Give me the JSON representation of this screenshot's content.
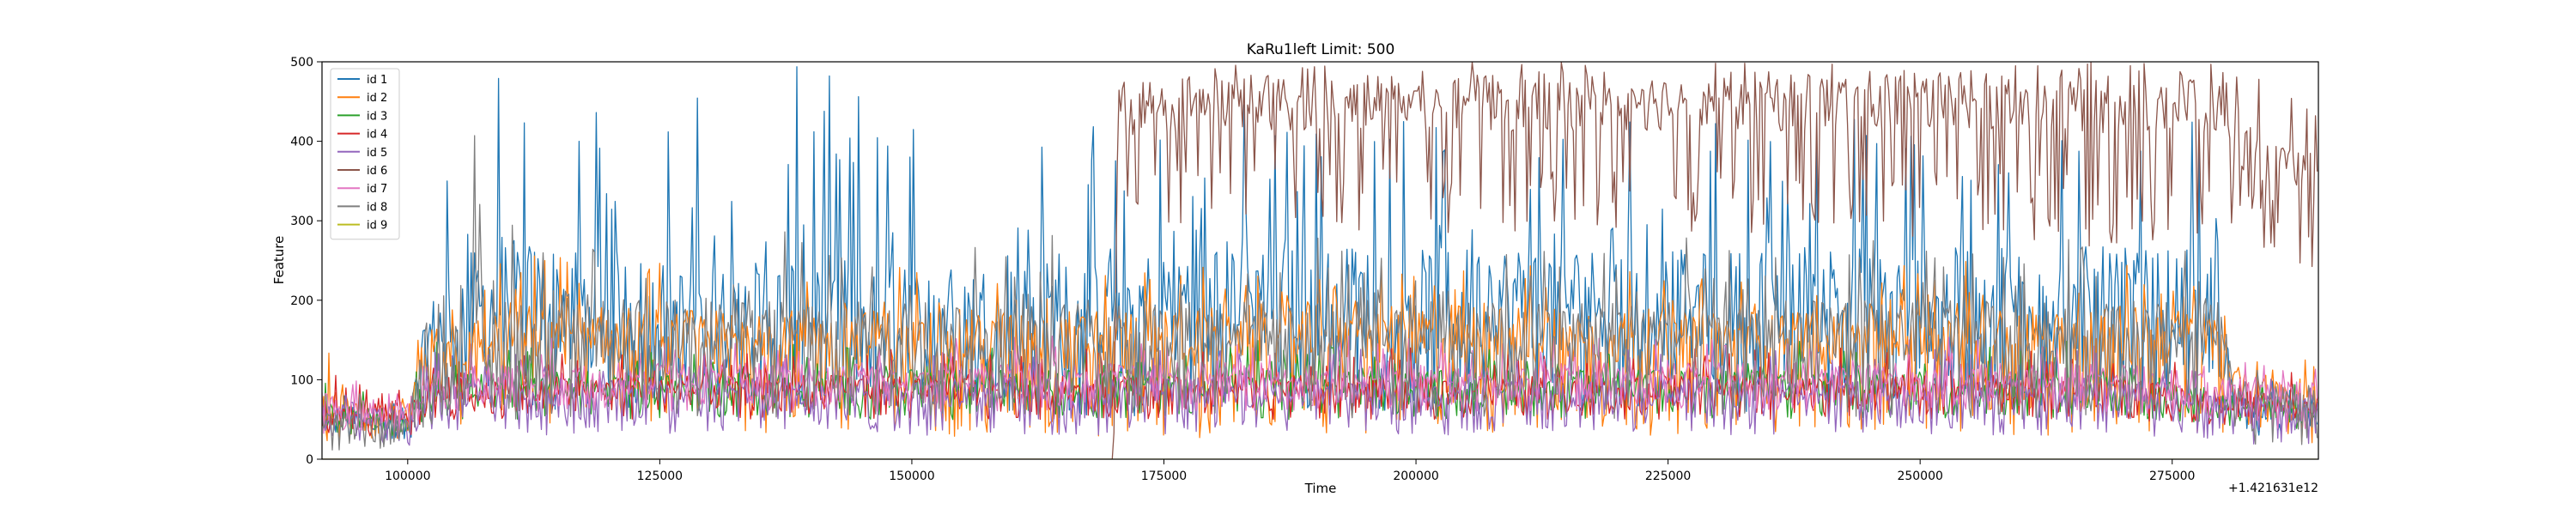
{
  "chart_data": {
    "type": "line",
    "title": "KaRu1left Limit: 500",
    "xlabel": "Time",
    "ylabel": "Feature",
    "x_offset_text": "+1.421631e12",
    "xlim": [
      91500,
      289500
    ],
    "ylim": [
      0,
      500
    ],
    "xticks": [
      100000,
      125000,
      150000,
      175000,
      200000,
      225000,
      250000,
      275000
    ],
    "xtick_labels": [
      "100000",
      "125000",
      "150000",
      "175000",
      "200000",
      "225000",
      "250000",
      "275000"
    ],
    "yticks": [
      0,
      100,
      200,
      300,
      400,
      500
    ],
    "ytick_labels": [
      "0",
      "100",
      "200",
      "300",
      "400",
      "500"
    ],
    "grid": false,
    "legend_position": "top-left",
    "series": [
      {
        "name": "id 1",
        "color": "#1f77b4",
        "x": [
          91500,
          95000,
          100000,
          102000,
          105000,
          110000,
          120000,
          130000,
          140000,
          150000,
          160000,
          170000,
          180000,
          190000,
          200000,
          210000,
          220000,
          230000,
          240000,
          250000,
          260000,
          270000,
          280000,
          281000,
          285000,
          289500
        ],
        "y": [
          60,
          50,
          40,
          150,
          180,
          200,
          190,
          170,
          185,
          175,
          180,
          190,
          210,
          200,
          195,
          205,
          200,
          195,
          210,
          200,
          205,
          200,
          195,
          70,
          60,
          50
        ],
        "ymin": [
          20,
          20,
          20,
          40,
          60,
          60,
          60,
          60,
          60,
          60,
          60,
          50,
          60,
          60,
          60,
          60,
          60,
          60,
          60,
          60,
          60,
          60,
          60,
          30,
          30,
          30
        ],
        "ymax": [
          90,
          80,
          90,
          300,
          500,
          500,
          500,
          460,
          500,
          460,
          460,
          420,
          460,
          460,
          460,
          440,
          460,
          440,
          440,
          440,
          440,
          440,
          440,
          110,
          100,
          100
        ]
      },
      {
        "name": "id 2",
        "color": "#ff7f0e",
        "x": [
          91500,
          95000,
          100000,
          102000,
          110000,
          130000,
          150000,
          170000,
          190000,
          210000,
          230000,
          250000,
          270000,
          280000,
          281000,
          289500
        ],
        "y": [
          70,
          60,
          50,
          120,
          160,
          150,
          150,
          150,
          160,
          155,
          150,
          160,
          155,
          150,
          90,
          80
        ],
        "ymin": [
          20,
          20,
          20,
          40,
          40,
          30,
          30,
          20,
          30,
          30,
          30,
          30,
          30,
          30,
          30,
          20
        ],
        "ymax": [
          140,
          110,
          100,
          220,
          260,
          250,
          250,
          240,
          250,
          250,
          240,
          250,
          250,
          240,
          160,
          150
        ]
      },
      {
        "name": "id 3",
        "color": "#2ca02c",
        "x": [
          91500,
          95000,
          100000,
          102000,
          120000,
          150000,
          180000,
          210000,
          240000,
          270000,
          281000,
          289500
        ],
        "y": [
          60,
          55,
          50,
          90,
          95,
          95,
          95,
          95,
          95,
          95,
          70,
          60
        ],
        "ymin": [
          30,
          30,
          25,
          50,
          50,
          50,
          50,
          50,
          50,
          50,
          40,
          30
        ],
        "ymax": [
          100,
          95,
          90,
          150,
          150,
          150,
          150,
          150,
          150,
          150,
          120,
          110
        ]
      },
      {
        "name": "id 4",
        "color": "#d62728",
        "x": [
          91500,
          95000,
          100000,
          102000,
          120000,
          150000,
          180000,
          210000,
          240000,
          270000,
          281000,
          289500
        ],
        "y": [
          65,
          60,
          55,
          85,
          90,
          90,
          90,
          90,
          90,
          90,
          75,
          65
        ],
        "ymin": [
          30,
          30,
          25,
          50,
          50,
          50,
          50,
          50,
          50,
          50,
          40,
          35
        ],
        "ymax": [
          110,
          100,
          95,
          140,
          140,
          140,
          140,
          140,
          140,
          140,
          120,
          110
        ]
      },
      {
        "name": "id 5",
        "color": "#9467bd",
        "x": [
          91500,
          95000,
          100000,
          102000,
          120000,
          150000,
          180000,
          210000,
          240000,
          270000,
          281000,
          289500
        ],
        "y": [
          60,
          55,
          50,
          80,
          85,
          85,
          85,
          85,
          85,
          85,
          70,
          60
        ],
        "ymin": [
          20,
          20,
          15,
          30,
          30,
          30,
          30,
          30,
          30,
          30,
          20,
          15
        ],
        "ymax": [
          100,
          95,
          90,
          140,
          140,
          140,
          140,
          140,
          140,
          140,
          120,
          110
        ]
      },
      {
        "name": "id 6",
        "color": "#8c564b",
        "x": [
          91500,
          170000,
          170500,
          180000,
          200000,
          220000,
          240000,
          260000,
          280000,
          282000,
          285000,
          289500
        ],
        "y": [
          0,
          0,
          440,
          450,
          450,
          450,
          450,
          450,
          450,
          400,
          360,
          350
        ],
        "ymin": [
          0,
          0,
          290,
          300,
          280,
          290,
          280,
          270,
          260,
          300,
          250,
          240
        ],
        "ymax": [
          0,
          0,
          500,
          500,
          500,
          500,
          500,
          500,
          500,
          500,
          460,
          450
        ]
      },
      {
        "name": "id 7",
        "color": "#e377c2",
        "x": [
          91500,
          95000,
          100000,
          102000,
          120000,
          150000,
          180000,
          210000,
          240000,
          270000,
          281000,
          289500
        ],
        "y": [
          70,
          65,
          60,
          100,
          105,
          105,
          105,
          105,
          105,
          105,
          90,
          80
        ],
        "ymin": [
          30,
          30,
          30,
          60,
          60,
          60,
          60,
          60,
          60,
          60,
          40,
          30
        ],
        "ymax": [
          110,
          105,
          100,
          150,
          155,
          155,
          155,
          155,
          155,
          155,
          130,
          125
        ]
      },
      {
        "name": "id 8",
        "color": "#7f7f7f",
        "x": [
          91500,
          95000,
          100000,
          102000,
          105000,
          120000,
          150000,
          180000,
          210000,
          240000,
          270000,
          280000,
          281000,
          289500
        ],
        "y": [
          50,
          45,
          40,
          140,
          160,
          160,
          160,
          160,
          160,
          160,
          160,
          160,
          80,
          70
        ],
        "ymin": [
          10,
          10,
          10,
          40,
          50,
          50,
          50,
          50,
          50,
          50,
          50,
          50,
          20,
          15
        ],
        "ymax": [
          90,
          85,
          80,
          280,
          500,
          290,
          290,
          280,
          280,
          280,
          280,
          270,
          120,
          110
        ]
      },
      {
        "name": "id 9",
        "color": "#bcbd22",
        "x": [
          91500,
          289500
        ],
        "y": [
          0,
          0
        ],
        "ymin": [
          0,
          0
        ],
        "ymax": [
          0,
          0
        ]
      }
    ]
  }
}
